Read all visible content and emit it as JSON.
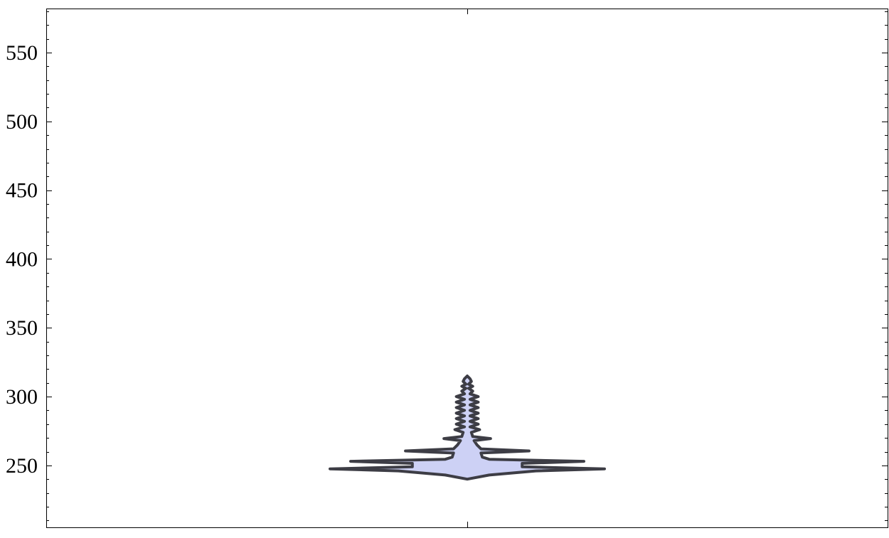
{
  "chart_data": {
    "type": "violin",
    "title": "",
    "xlabel": "",
    "ylabel": "",
    "ylim": [
      205,
      582
    ],
    "y_ticks": [
      250,
      300,
      350,
      400,
      450,
      500,
      550
    ],
    "y_tick_labels": [
      "250",
      "300",
      "350",
      "400",
      "450",
      "500",
      "550"
    ],
    "y_minor_step": 10,
    "grid": false,
    "frame": true,
    "series": [
      {
        "min": 240,
        "max": 315,
        "density": [
          {
            "y": 240,
            "w": 0.0
          },
          {
            "y": 243,
            "w": 0.16
          },
          {
            "y": 246,
            "w": 0.5
          },
          {
            "y": 247.5,
            "w": 1.0
          },
          {
            "y": 249,
            "w": 0.4
          },
          {
            "y": 250.5,
            "w": 0.4
          },
          {
            "y": 251.5,
            "w": 0.4
          },
          {
            "y": 253,
            "w": 0.85
          },
          {
            "y": 254.5,
            "w": 0.16
          },
          {
            "y": 256,
            "w": 0.11
          },
          {
            "y": 259,
            "w": 0.1
          },
          {
            "y": 260.5,
            "w": 0.45
          },
          {
            "y": 262,
            "w": 0.1
          },
          {
            "y": 265,
            "w": 0.07
          },
          {
            "y": 268,
            "w": 0.05
          },
          {
            "y": 269.5,
            "w": 0.17
          },
          {
            "y": 271,
            "w": 0.04
          },
          {
            "y": 274,
            "w": 0.03
          },
          {
            "y": 276,
            "w": 0.09
          },
          {
            "y": 278,
            "w": 0.02
          },
          {
            "y": 280,
            "w": 0.08
          },
          {
            "y": 282,
            "w": 0.02
          },
          {
            "y": 284,
            "w": 0.08
          },
          {
            "y": 286,
            "w": 0.02
          },
          {
            "y": 288,
            "w": 0.08
          },
          {
            "y": 290,
            "w": 0.02
          },
          {
            "y": 292,
            "w": 0.08
          },
          {
            "y": 294,
            "w": 0.02
          },
          {
            "y": 296,
            "w": 0.08
          },
          {
            "y": 298,
            "w": 0.02
          },
          {
            "y": 300,
            "w": 0.08
          },
          {
            "y": 302,
            "w": 0.02
          },
          {
            "y": 304,
            "w": 0.04
          },
          {
            "y": 306,
            "w": 0.01
          },
          {
            "y": 307.5,
            "w": 0.04
          },
          {
            "y": 309,
            "w": 0.01
          },
          {
            "y": 311,
            "w": 0.03
          },
          {
            "y": 313,
            "w": 0.02
          },
          {
            "y": 315,
            "w": 0.0
          }
        ]
      }
    ],
    "colors": {
      "fill": "#cdd1f5",
      "outline": "#3d3d45",
      "frame": "#000000"
    }
  }
}
